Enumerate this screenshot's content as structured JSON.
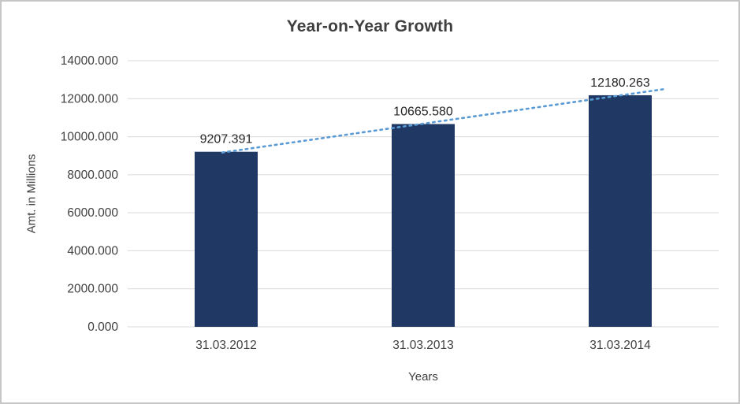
{
  "title": "Year-on-Year Growth",
  "colors": {
    "bar": "#1F3864",
    "trendline": "#5B9BD5",
    "grid": "#D9D9D9",
    "tick_text": "#404040",
    "data_label_text": "#262626",
    "title_text": "#3F3F3F",
    "border": "#C6C6C6",
    "background": "#FFFFFF"
  },
  "chart_data": {
    "type": "bar",
    "title": "Year-on-Year Growth",
    "xlabel": "Years",
    "ylabel": "Amt. in Millions",
    "categories": [
      "31.03.2012",
      "31.03.2013",
      "31.03.2014"
    ],
    "values": [
      9207.391,
      10665.58,
      12180.263
    ],
    "data_labels": [
      "9207.391",
      "10665.580",
      "12180.263"
    ],
    "ylim": [
      0,
      14000
    ],
    "ytick_step": 2000,
    "ytick_labels": [
      "0.000",
      "2000.000",
      "4000.000",
      "6000.000",
      "8000.000",
      "10000.000",
      "12000.000",
      "14000.000"
    ],
    "grid": true,
    "legend": "none",
    "trendline": {
      "style": "dotted",
      "color": "#5B9BD5"
    }
  }
}
